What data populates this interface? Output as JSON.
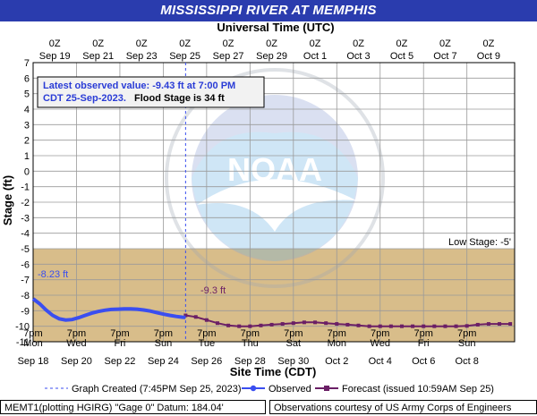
{
  "header": {
    "title": "MISSISSIPPI RIVER AT MEMPHIS"
  },
  "chart_data": {
    "type": "line",
    "top_axis_title": "Universal Time (UTC)",
    "top_ticks": [
      {
        "day": 19,
        "l1": "0Z",
        "l2": "Sep 19"
      },
      {
        "day": 21,
        "l1": "0Z",
        "l2": "Sep 21"
      },
      {
        "day": 23,
        "l1": "0Z",
        "l2": "Sep 23"
      },
      {
        "day": 25,
        "l1": "0Z",
        "l2": "Sep 25"
      },
      {
        "day": 27,
        "l1": "0Z",
        "l2": "Sep 27"
      },
      {
        "day": 29,
        "l1": "0Z",
        "l2": "Sep 29"
      },
      {
        "day": 31,
        "l1": "0Z",
        "l2": "Oct 1"
      },
      {
        "day": 33,
        "l1": "0Z",
        "l2": "Oct 3"
      },
      {
        "day": 35,
        "l1": "0Z",
        "l2": "Oct 5"
      },
      {
        "day": 37,
        "l1": "0Z",
        "l2": "Oct 7"
      },
      {
        "day": 39,
        "l1": "0Z",
        "l2": "Oct 9"
      }
    ],
    "bottom_axis_title": "Site Time (CDT)",
    "bottom_ticks": [
      {
        "day": 18,
        "l1": "7pm",
        "l2": "Mon",
        "l3": "Sep 18"
      },
      {
        "day": 20,
        "l1": "7pm",
        "l2": "Wed",
        "l3": "Sep 20"
      },
      {
        "day": 22,
        "l1": "7pm",
        "l2": "Fri",
        "l3": "Sep 22"
      },
      {
        "day": 24,
        "l1": "7pm",
        "l2": "Sun",
        "l3": "Sep 24"
      },
      {
        "day": 26,
        "l1": "7pm",
        "l2": "Tue",
        "l3": "Sep 26"
      },
      {
        "day": 28,
        "l1": "7pm",
        "l2": "Thu",
        "l3": "Sep 28"
      },
      {
        "day": 30,
        "l1": "7pm",
        "l2": "Sat",
        "l3": "Sep 30"
      },
      {
        "day": 32,
        "l1": "7pm",
        "l2": "Mon",
        "l3": "Oct 2"
      },
      {
        "day": 34,
        "l1": "7pm",
        "l2": "Wed",
        "l3": "Oct 4"
      },
      {
        "day": 36,
        "l1": "7pm",
        "l2": "Fri",
        "l3": "Oct 6"
      },
      {
        "day": 38,
        "l1": "7pm",
        "l2": "Sun",
        "l3": "Oct 8"
      }
    ],
    "ylabel": "Stage (ft)",
    "ylim": [
      -11,
      7
    ],
    "yticks": [
      7,
      6,
      5,
      4,
      3,
      2,
      1,
      0,
      -1,
      -2,
      -3,
      -4,
      -5,
      -6,
      -7,
      -8,
      -9,
      -10,
      -11
    ],
    "x_range_days": [
      18,
      40.2
    ],
    "low_stage": {
      "value": -5,
      "label": "Low Stage: -5'",
      "color": "#d8bd8a"
    },
    "graph_created_day": 25.03,
    "observed_series": {
      "name": "Observed",
      "color": "#3a4ef0",
      "points": [
        [
          18.0,
          -8.23
        ],
        [
          18.3,
          -8.55
        ],
        [
          18.6,
          -8.95
        ],
        [
          18.9,
          -9.3
        ],
        [
          19.2,
          -9.52
        ],
        [
          19.5,
          -9.6
        ],
        [
          19.8,
          -9.57
        ],
        [
          20.1,
          -9.45
        ],
        [
          20.4,
          -9.3
        ],
        [
          20.7,
          -9.16
        ],
        [
          21.0,
          -9.05
        ],
        [
          21.3,
          -8.97
        ],
        [
          21.6,
          -8.92
        ],
        [
          21.9,
          -8.9
        ],
        [
          22.2,
          -8.88
        ],
        [
          22.5,
          -8.88
        ],
        [
          22.8,
          -8.9
        ],
        [
          23.1,
          -8.95
        ],
        [
          23.4,
          -9.02
        ],
        [
          23.7,
          -9.12
        ],
        [
          24.0,
          -9.22
        ],
        [
          24.3,
          -9.3
        ],
        [
          24.6,
          -9.37
        ],
        [
          24.9,
          -9.42
        ],
        [
          25.03,
          -9.43
        ]
      ]
    },
    "forecast_series": {
      "name": "Forecast (issued 10:59AM Sep 25)",
      "color": "#6b1f66",
      "points": [
        [
          25.03,
          -9.3
        ],
        [
          25.5,
          -9.4
        ],
        [
          26.0,
          -9.6
        ],
        [
          26.5,
          -9.8
        ],
        [
          27.0,
          -9.95
        ],
        [
          27.5,
          -10.0
        ],
        [
          28.0,
          -10.0
        ],
        [
          28.5,
          -9.95
        ],
        [
          29.0,
          -9.9
        ],
        [
          29.5,
          -9.85
        ],
        [
          30.0,
          -9.8
        ],
        [
          30.5,
          -9.75
        ],
        [
          31.0,
          -9.75
        ],
        [
          31.5,
          -9.8
        ],
        [
          32.0,
          -9.85
        ],
        [
          32.5,
          -9.9
        ],
        [
          33.0,
          -9.95
        ],
        [
          33.5,
          -10.0
        ],
        [
          34.0,
          -10.0
        ],
        [
          34.5,
          -10.0
        ],
        [
          35.0,
          -10.0
        ],
        [
          35.5,
          -10.0
        ],
        [
          36.0,
          -10.0
        ],
        [
          36.5,
          -10.0
        ],
        [
          37.0,
          -10.0
        ],
        [
          37.5,
          -10.0
        ],
        [
          38.0,
          -9.98
        ],
        [
          38.5,
          -9.9
        ],
        [
          39.0,
          -9.85
        ],
        [
          39.5,
          -9.85
        ],
        [
          40.0,
          -9.85
        ]
      ]
    },
    "annotations": {
      "observed_start": "-8.23 ft",
      "forecast_start": "-9.3 ft"
    },
    "info_box": {
      "line1": "Latest observed value: -9.43 ft at 7:00 PM",
      "line2_part1": "CDT 25-Sep-2023.",
      "line2_part2": "Flood Stage is 34 ft"
    },
    "legend": {
      "graph_created": "Graph Created (7:45PM Sep 25, 2023)",
      "observed": "Observed",
      "forecast": "Forecast (issued 10:59AM Sep 25)"
    },
    "watermark": "NOAA — NATIONAL OCEANIC AND ATMOSPHERIC ADMINISTRATION — U.S. DEPARTMENT OF COMMERCE"
  },
  "footer": {
    "left": "MEMT1(plotting HGIRG) \"Gage 0\" Datum: 184.04'",
    "right": "Observations courtesy of US Army Corps of Engineers"
  }
}
